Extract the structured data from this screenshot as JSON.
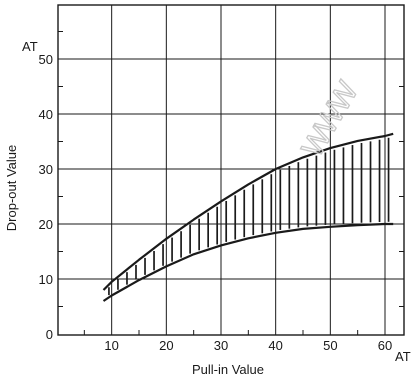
{
  "chart_data": {
    "type": "area",
    "title": "",
    "xlabel": "Pull-in Value",
    "ylabel": "Drop-out Value",
    "x_unit": "AT",
    "y_unit": "AT",
    "xlim": [
      0,
      60
    ],
    "ylim": [
      0,
      55
    ],
    "x_ticks": [
      10,
      20,
      30,
      40,
      50,
      60
    ],
    "y_ticks": [
      0,
      10,
      20,
      30,
      40,
      50
    ],
    "grid": true,
    "watermark": "WWW",
    "series": [
      {
        "x": [
          8.5,
          10,
          15,
          20,
          25,
          30,
          35,
          40,
          45,
          50,
          55,
          60,
          61.5
        ],
        "values": [
          8,
          9.5,
          13.5,
          17.3,
          20.8,
          24.1,
          27.2,
          30,
          32.1,
          33.8,
          35.1,
          36,
          36.4
        ]
      },
      {
        "x": [
          8.5,
          10,
          15,
          20,
          25,
          30,
          35,
          40,
          45,
          50,
          55,
          60,
          61.5
        ],
        "values": [
          6,
          7,
          9.8,
          12.3,
          14.5,
          16.1,
          17.4,
          18.4,
          19.1,
          19.5,
          19.8,
          20,
          20
        ]
      }
    ],
    "colors": {
      "line": "#1a1a1a",
      "grid": "#1a1a1a",
      "watermark": "#c8c8c8"
    }
  }
}
